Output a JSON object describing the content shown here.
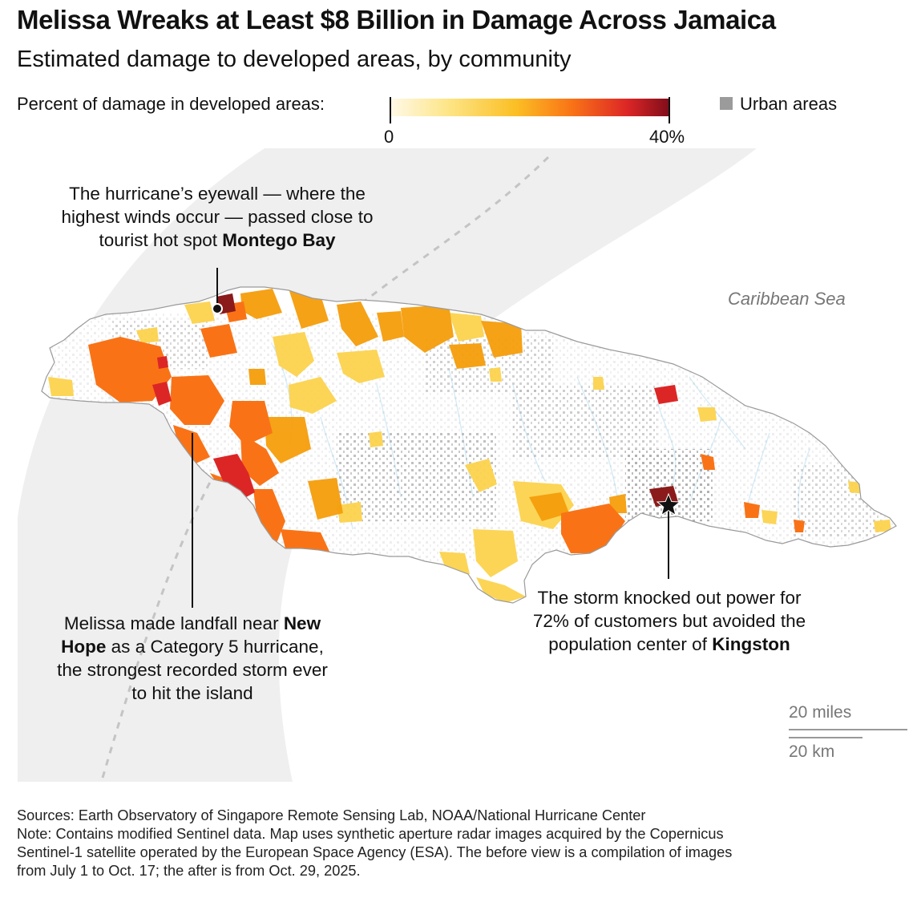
{
  "title": "Melissa Wreaks at Least $8 Billion in Damage Across Jamaica",
  "subtitle": "Estimated damage to developed areas, by community",
  "legend": {
    "label": "Percent of damage in developed areas:",
    "min_label": "0",
    "max_label": "40%",
    "range": [
      0,
      40
    ],
    "colors": [
      "#fff9e8",
      "#fde68a",
      "#fbbf24",
      "#f97316",
      "#dc2626",
      "#7f0d1a"
    ],
    "urban_label": "Urban areas",
    "urban_color": "#9b9b9b"
  },
  "map": {
    "land_color": "#ffffff",
    "land_outline": "#9a9a9a",
    "track_band_color": "#efefef",
    "track_line_color": "#c4c4c4",
    "sea_label": "Caribbean Sea",
    "annotations": {
      "montego": {
        "before": "The hurricane’s eyewall — where the highest winds occur — passed close to tourist hot spot ",
        "bold": "Montego Bay",
        "after": ""
      },
      "newhope": {
        "before": "Melissa made landfall near ",
        "bold": "New Hope",
        "after": " as a Category 5 hurricane, the strongest recorded storm ever to hit the island"
      },
      "kingston": {
        "before": "The storm knocked out power for 72% of customers but avoided the population center of ",
        "bold": "Kingston",
        "after": ""
      }
    },
    "scale": {
      "miles": "20 miles",
      "km": "20 km"
    }
  },
  "footer": {
    "sources": "Sources: Earth Observatory of Singapore Remote Sensing Lab, NOAA/National Hurricane Center",
    "note_line1": "Note: Contains modified Sentinel data. Map uses synthetic aperture radar images acquired by the Copernicus",
    "note_line2": "Sentinel-1 satellite operated by the European Space Agency (ESA). The before view is a compilation of images",
    "note_line3": "from July 1 to Oct. 17; the after is from Oct. 29, 2025."
  }
}
